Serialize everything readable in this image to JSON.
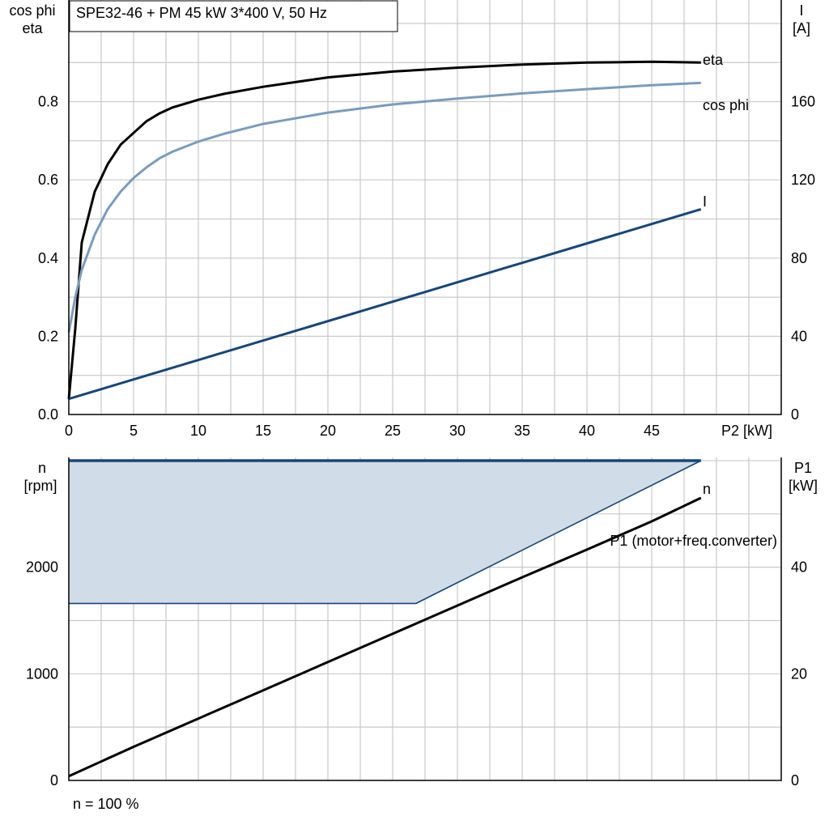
{
  "title": "SPE32-46 + PM   45 kW   3*400 V, 50 Hz",
  "footer_note": "n = 100 %",
  "colors": {
    "eta": "#000000",
    "cosphi": "#7a9cbc",
    "current": "#16467a",
    "n": "#16467a",
    "p1": "#000000",
    "band_fill": "#d0dce8",
    "grid": "#c9c9c9"
  },
  "chart_data": [
    {
      "type": "line",
      "left_axis_label": [
        "cos phi",
        "eta"
      ],
      "right_axis_label": [
        "I",
        "[A]"
      ],
      "xlabel": "P2 [kW]",
      "xlim": [
        0,
        55
      ],
      "ylim": [
        0,
        1.06
      ],
      "y2lim": [
        0,
        212
      ],
      "x_ticks": [
        0,
        5,
        10,
        15,
        20,
        25,
        30,
        35,
        40,
        45
      ],
      "x_tick_labels": [
        "0",
        "5",
        "10",
        "15",
        "20",
        "25",
        "30",
        "35",
        "40",
        "45"
      ],
      "y_ticks": [
        0,
        0.2,
        0.4,
        0.6,
        0.8
      ],
      "y_tick_labels": [
        "0.0",
        "0.2",
        "0.4",
        "0.6",
        "0.8"
      ],
      "y2_ticks": [
        0,
        40,
        80,
        120,
        160
      ],
      "y2_tick_labels": [
        "0",
        "40",
        "80",
        "120",
        "160"
      ],
      "grid": true,
      "series": [
        {
          "name": "eta",
          "axis": "left",
          "x": [
            0,
            0.5,
            1,
            2,
            3,
            4,
            5,
            6,
            7,
            8,
            10,
            12,
            15,
            20,
            25,
            30,
            35,
            40,
            45,
            48.8
          ],
          "y": [
            0.04,
            0.22,
            0.44,
            0.57,
            0.64,
            0.69,
            0.72,
            0.75,
            0.77,
            0.785,
            0.805,
            0.82,
            0.838,
            0.862,
            0.877,
            0.887,
            0.895,
            0.9,
            0.902,
            0.9
          ]
        },
        {
          "name": "cos phi",
          "axis": "left",
          "x": [
            0,
            0.5,
            1,
            2,
            3,
            4,
            5,
            6,
            7,
            8,
            10,
            12,
            15,
            20,
            25,
            30,
            35,
            40,
            45,
            48.8
          ],
          "y": [
            0.21,
            0.3,
            0.37,
            0.46,
            0.525,
            0.57,
            0.605,
            0.632,
            0.655,
            0.672,
            0.698,
            0.718,
            0.743,
            0.772,
            0.793,
            0.808,
            0.821,
            0.832,
            0.842,
            0.848
          ]
        },
        {
          "name": "I",
          "axis": "right",
          "x": [
            0,
            48.8
          ],
          "y": [
            8,
            105
          ]
        }
      ]
    },
    {
      "type": "line",
      "left_axis_label": [
        "n",
        "[rpm]"
      ],
      "right_axis_label": [
        "P1",
        "[kW]"
      ],
      "xlim": [
        0,
        55
      ],
      "ylim": [
        0,
        3030
      ],
      "y2lim": [
        0,
        60.6
      ],
      "y_ticks": [
        0,
        1000,
        2000
      ],
      "y_tick_labels": [
        "0",
        "1000",
        "2000"
      ],
      "y2_ticks": [
        0,
        20,
        40
      ],
      "y2_tick_labels": [
        "0",
        "20",
        "40"
      ],
      "grid": true,
      "band": {
        "name": "n",
        "x_upper": [
          0,
          48.8
        ],
        "y_upper": [
          3000,
          3000
        ],
        "x_lower": [
          0,
          26.8,
          48.8
        ],
        "y_lower": [
          1660,
          1660,
          3000
        ]
      },
      "series": [
        {
          "name": "P1 (motor+freq.converter)",
          "axis": "right",
          "x": [
            0,
            5,
            10,
            15,
            20,
            25,
            30,
            35,
            40,
            45,
            48.8
          ],
          "y": [
            0.8,
            6.3,
            11.6,
            16.9,
            22.2,
            27.5,
            32.8,
            38.1,
            43.3,
            48.6,
            53
          ]
        }
      ]
    }
  ]
}
